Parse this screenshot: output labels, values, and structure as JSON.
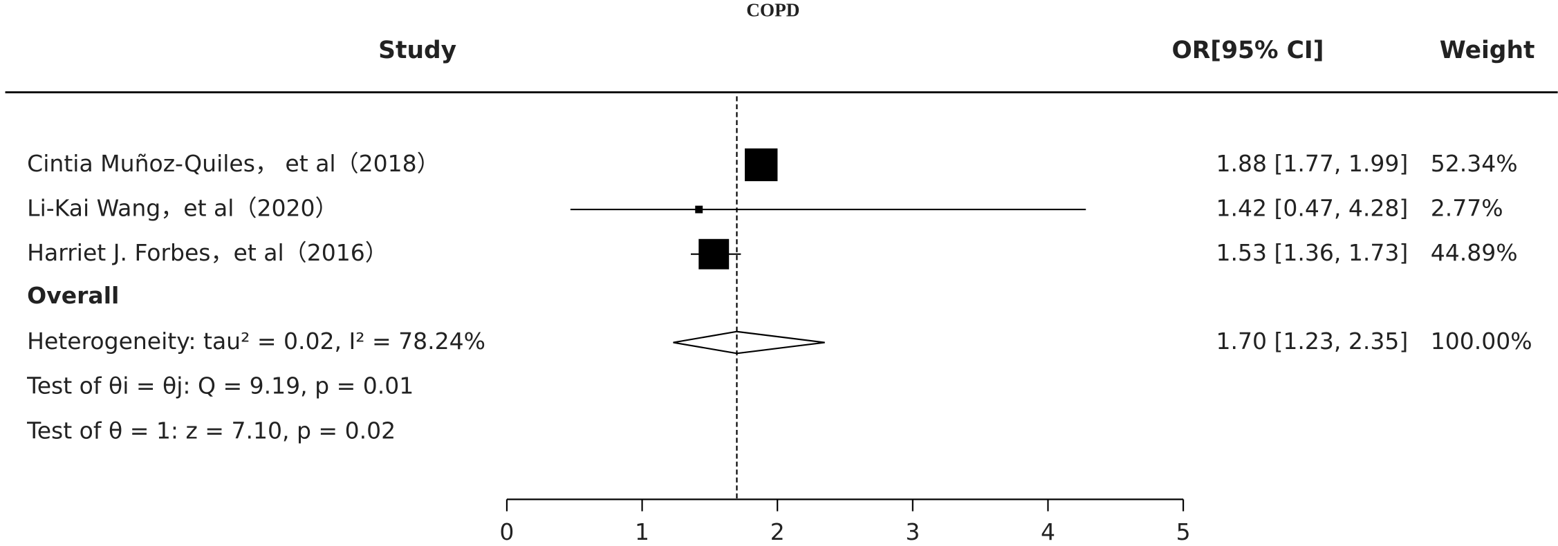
{
  "chart_data": {
    "type": "forest",
    "title": "COPD",
    "headers": {
      "study": "Study",
      "estimate": "OR[95% CI]",
      "weight": "Weight"
    },
    "studies": [
      {
        "label": "Cintia Muñoz-Quiles， et al（2018）",
        "or": 1.88,
        "ci": [
          1.77,
          1.99
        ],
        "or_label": "1.88 [1.77, 1.99]",
        "weight": 52.34,
        "weight_label": "52.34%"
      },
      {
        "label": "Li-Kai Wang，et al（2020）",
        "or": 1.42,
        "ci": [
          0.47,
          4.28
        ],
        "or_label": "1.42 [0.47, 4.28]",
        "weight": 2.77,
        "weight_label": "2.77%"
      },
      {
        "label": "Harriet J. Forbes，et al（2016）",
        "or": 1.53,
        "ci": [
          1.36,
          1.73
        ],
        "or_label": "1.53 [1.36, 1.73]",
        "weight": 44.89,
        "weight_label": "44.89%"
      }
    ],
    "overall": {
      "label": "Overall",
      "or": 1.7,
      "ci": [
        1.23,
        2.35
      ],
      "or_label": "1.70 [1.23, 2.35]",
      "weight": 100.0,
      "weight_label": "100.00%"
    },
    "stats": [
      "Heterogeneity: tau² = 0.02, I² = 78.24%",
      "Test of θi = θj: Q = 9.19, p = 0.01",
      "Test of θ = 1: z = 7.10, p = 0.02"
    ],
    "xlim": [
      0,
      5
    ],
    "xticks": [
      0,
      1,
      2,
      3,
      4,
      5
    ],
    "color": "#000000"
  }
}
